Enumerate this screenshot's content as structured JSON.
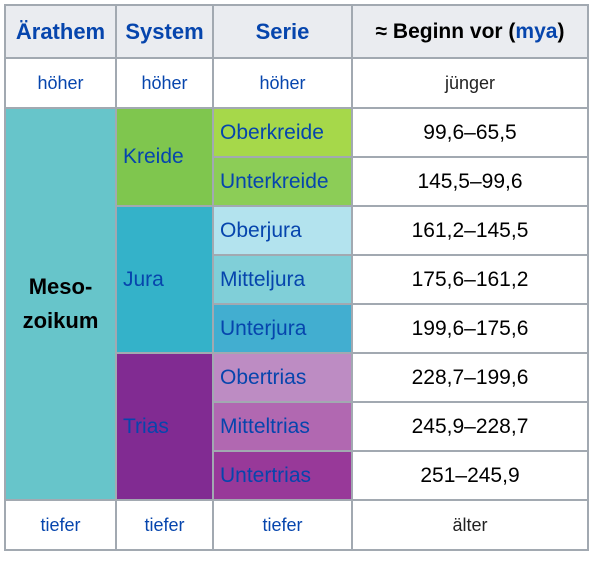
{
  "header": {
    "col1": "Ärathem",
    "col2": "System",
    "col3": "Serie",
    "col4_prefix": "≈ Beginn vor (",
    "col4_link": "mya",
    "col4_suffix": ")"
  },
  "top_row": {
    "c1": "höher",
    "c2": "höher",
    "c3": "höher",
    "c4": "jünger"
  },
  "bottom_row": {
    "c1": "tiefer",
    "c2": "tiefer",
    "c3": "tiefer",
    "c4": "älter"
  },
  "erathem": {
    "line1": "Meso-",
    "line2": "zoikum",
    "color": "#67c5ca"
  },
  "systems": [
    {
      "name": "Kreide",
      "color": "#7fc64e"
    },
    {
      "name": "Jura",
      "color": "#34b2c9"
    },
    {
      "name": "Trias",
      "color": "#812b92"
    }
  ],
  "series": [
    {
      "name": "Oberkreide",
      "age": "99,6–65,5",
      "color": "#a6d84a"
    },
    {
      "name": "Unterkreide",
      "age": "145,5–99,6",
      "color": "#8ccd57"
    },
    {
      "name": "Oberjura",
      "age": "161,2–145,5",
      "color": "#b3e3ee"
    },
    {
      "name": "Mitteljura",
      "age": "175,6–161,2",
      "color": "#80cfd8"
    },
    {
      "name": "Unterjura",
      "age": "199,6–175,6",
      "color": "#42aed0"
    },
    {
      "name": "Obertrias",
      "age": "228,7–199,6",
      "color": "#bd8cc3"
    },
    {
      "name": "Mitteltrias",
      "age": "245,9–228,7",
      "color": "#b168b1"
    },
    {
      "name": "Untertrias",
      "age": "251–245,9",
      "color": "#983999"
    }
  ]
}
